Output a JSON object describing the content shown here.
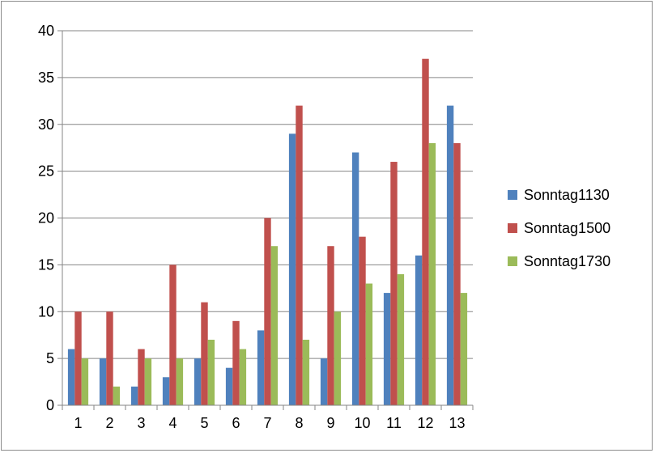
{
  "chart_data": {
    "type": "bar",
    "categories": [
      "1",
      "2",
      "3",
      "4",
      "5",
      "6",
      "7",
      "8",
      "9",
      "10",
      "11",
      "12",
      "13"
    ],
    "series": [
      {
        "name": "Sonntag1130",
        "color": "#4f81bd",
        "values": [
          6,
          5,
          2,
          3,
          5,
          4,
          8,
          29,
          5,
          27,
          12,
          16,
          32
        ]
      },
      {
        "name": "Sonntag1500",
        "color": "#c0504d",
        "values": [
          10,
          10,
          6,
          15,
          11,
          9,
          20,
          32,
          17,
          18,
          26,
          37,
          28
        ]
      },
      {
        "name": "Sonntag1730",
        "color": "#9bbb59",
        "values": [
          5,
          2,
          5,
          5,
          7,
          6,
          17,
          7,
          10,
          13,
          14,
          28,
          12
        ]
      }
    ],
    "ylim": [
      0,
      40
    ],
    "yticks": [
      0,
      5,
      10,
      15,
      20,
      25,
      30,
      35,
      40
    ],
    "grid": true,
    "legend_position": "right"
  }
}
